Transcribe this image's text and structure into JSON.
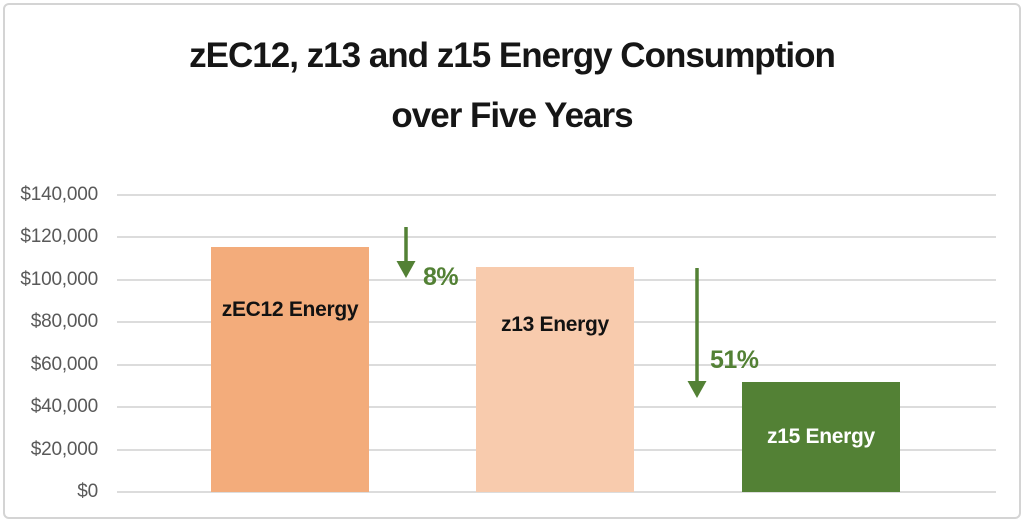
{
  "title": {
    "line1": "zEC12, z13 and z15 Energy Consumption",
    "line2": "over Five Years"
  },
  "chart_data": {
    "type": "bar",
    "title": "zEC12, z13 and z15 Energy Consumption over Five Years",
    "categories": [
      "zEC12 Energy",
      "z13 Energy",
      "z15 Energy"
    ],
    "values": [
      115500,
      106000,
      52000
    ],
    "xlabel": "",
    "ylabel": "",
    "ylim": [
      0,
      140000
    ],
    "ytick_step": 20000,
    "ytick_labels": [
      "$0",
      "$20,000",
      "$40,000",
      "$60,000",
      "$80,000",
      "$100,000",
      "$120,000",
      "$140,000"
    ],
    "grid": true,
    "legend": "none",
    "bar_colors": [
      "#F3AC7B",
      "#F8CBAD",
      "#538135"
    ],
    "bar_label_colors": [
      "#121212",
      "#121212",
      "#FFFFFF"
    ],
    "annotations": [
      {
        "text": "8%"
      },
      {
        "text": "51%"
      }
    ]
  },
  "colors": {
    "accent_green": "#538135",
    "gridline": "#DCDCDC",
    "axis_label": "#595959",
    "frame_border": "#D4D4D4",
    "background": "#FFFFFF"
  }
}
